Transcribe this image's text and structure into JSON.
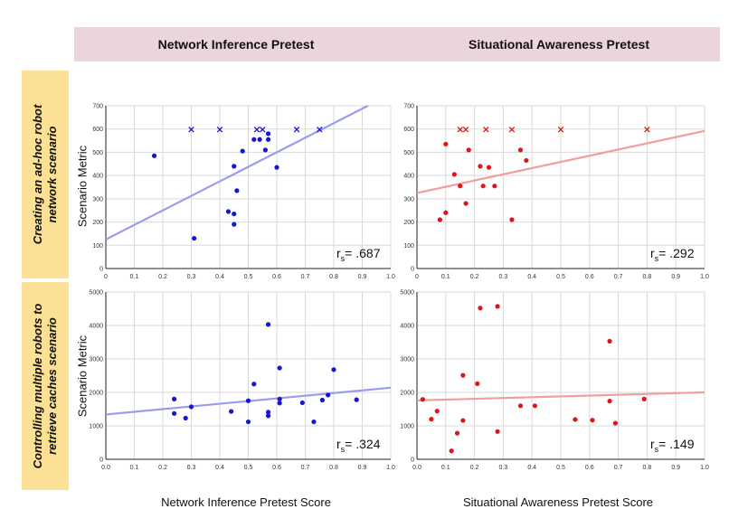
{
  "headers": {
    "col1": "Network Inference Pretest",
    "col2": "Situational Awareness Pretest",
    "row1_line1": "Creating an ad-hoc robot",
    "row1_line2": "network scenario",
    "row2_line1": "Controlling multiple robots to",
    "row2_line2": "retrieve caches scenario"
  },
  "ylabel": "Scenario Metric",
  "xlabels": {
    "col1": "Network Inference Pretest Score",
    "col2": "Situational Awareness Pretest Score"
  },
  "colors": {
    "blue": "#1515d6",
    "blue_line": "#9a9cf0",
    "red": "#e01515",
    "red_line": "#f29d9d",
    "grid": "#d9d9d9"
  },
  "chart_data": [
    {
      "type": "scatter",
      "xlim": [
        0,
        1
      ],
      "ylim": [
        0,
        700
      ],
      "xticks": [
        "0",
        "0.1",
        "0.2",
        "0.3",
        "0.4",
        "0.5",
        "0.6",
        "0.7",
        "0.8",
        "0.9",
        "1.0"
      ],
      "yticks": [
        "0",
        "100",
        "200",
        "300",
        "400",
        "500",
        "600",
        "700"
      ],
      "color": "blue",
      "points": [
        [
          0.17,
          485
        ],
        [
          0.31,
          130
        ],
        [
          0.43,
          245
        ],
        [
          0.45,
          440
        ],
        [
          0.45,
          235
        ],
        [
          0.45,
          190
        ],
        [
          0.46,
          335
        ],
        [
          0.48,
          505
        ],
        [
          0.52,
          555
        ],
        [
          0.54,
          555
        ],
        [
          0.56,
          510
        ],
        [
          0.57,
          555
        ],
        [
          0.57,
          580
        ],
        [
          0.6,
          435
        ]
      ],
      "crosses": [
        [
          0.3,
          598
        ],
        [
          0.4,
          598
        ],
        [
          0.53,
          598
        ],
        [
          0.55,
          598
        ],
        [
          0.67,
          598
        ],
        [
          0.75,
          598
        ]
      ],
      "trend": [
        [
          0,
          125
        ],
        [
          0.92,
          700
        ]
      ],
      "annotation": {
        "r": "r",
        "sub": "s",
        "value": "= .687"
      }
    },
    {
      "type": "scatter",
      "xlim": [
        0,
        1
      ],
      "ylim": [
        0,
        700
      ],
      "xticks": [
        "0",
        "0.1",
        "0.2",
        "0.3",
        "0.4",
        "0.5",
        "0.6",
        "0.7",
        "0.8",
        "0.9",
        "1.0"
      ],
      "yticks": [
        "0",
        "100",
        "200",
        "300",
        "400",
        "500",
        "600",
        "700"
      ],
      "color": "red",
      "points": [
        [
          0.08,
          210
        ],
        [
          0.1,
          535
        ],
        [
          0.1,
          240
        ],
        [
          0.13,
          405
        ],
        [
          0.15,
          355
        ],
        [
          0.17,
          280
        ],
        [
          0.18,
          510
        ],
        [
          0.22,
          440
        ],
        [
          0.23,
          355
        ],
        [
          0.25,
          435
        ],
        [
          0.27,
          355
        ],
        [
          0.33,
          210
        ],
        [
          0.36,
          510
        ],
        [
          0.38,
          465
        ]
      ],
      "crosses": [
        [
          0.15,
          598
        ],
        [
          0.17,
          598
        ],
        [
          0.24,
          598
        ],
        [
          0.33,
          598
        ],
        [
          0.5,
          598
        ],
        [
          0.8,
          598
        ]
      ],
      "trend": [
        [
          0,
          325
        ],
        [
          1,
          592
        ]
      ],
      "annotation": {
        "r": "r",
        "sub": "s",
        "value": "= .292"
      }
    },
    {
      "type": "scatter",
      "xlim": [
        0,
        1
      ],
      "ylim": [
        0,
        5000
      ],
      "xticks": [
        "0.0",
        "0.1",
        "0.2",
        "0.3",
        "0.4",
        "0.5",
        "0.6",
        "0.7",
        "0.8",
        "0.9",
        "1.0"
      ],
      "yticks": [
        "0",
        "1000",
        "2000",
        "3000",
        "4000",
        "5000"
      ],
      "color": "blue",
      "points": [
        [
          0.24,
          1800
        ],
        [
          0.24,
          1370
        ],
        [
          0.28,
          1230
        ],
        [
          0.3,
          1570
        ],
        [
          0.44,
          1430
        ],
        [
          0.5,
          1750
        ],
        [
          0.5,
          1120
        ],
        [
          0.52,
          2250
        ],
        [
          0.57,
          4030
        ],
        [
          0.57,
          1410
        ],
        [
          0.57,
          1300
        ],
        [
          0.61,
          1800
        ],
        [
          0.61,
          1680
        ],
        [
          0.61,
          2730
        ],
        [
          0.69,
          1690
        ],
        [
          0.73,
          1120
        ],
        [
          0.76,
          1770
        ],
        [
          0.78,
          1920
        ],
        [
          0.8,
          2680
        ],
        [
          0.88,
          1780
        ]
      ],
      "crosses": [],
      "trend": [
        [
          0,
          1340
        ],
        [
          1,
          2140
        ]
      ],
      "annotation": {
        "r": "r",
        "sub": "s",
        "value": "= .324"
      }
    },
    {
      "type": "scatter",
      "xlim": [
        0,
        1
      ],
      "ylim": [
        0,
        5000
      ],
      "xticks": [
        "0.0",
        "0.1",
        "0.2",
        "0.3",
        "0.4",
        "0.5",
        "0.6",
        "0.7",
        "0.8",
        "0.9",
        "1.0"
      ],
      "yticks": [
        "0",
        "1000",
        "2000",
        "3000",
        "4000",
        "5000"
      ],
      "color": "red",
      "points": [
        [
          0.02,
          1790
        ],
        [
          0.05,
          1200
        ],
        [
          0.07,
          1440
        ],
        [
          0.12,
          250
        ],
        [
          0.14,
          780
        ],
        [
          0.16,
          2510
        ],
        [
          0.16,
          1160
        ],
        [
          0.21,
          2260
        ],
        [
          0.22,
          4520
        ],
        [
          0.28,
          4570
        ],
        [
          0.28,
          830
        ],
        [
          0.36,
          1600
        ],
        [
          0.41,
          1600
        ],
        [
          0.55,
          1190
        ],
        [
          0.61,
          1170
        ],
        [
          0.67,
          3530
        ],
        [
          0.67,
          1740
        ],
        [
          0.69,
          1080
        ],
        [
          0.79,
          1800
        ]
      ],
      "crosses": [],
      "trend": [
        [
          0,
          1760
        ],
        [
          1,
          2000
        ]
      ],
      "annotation": {
        "r": "r",
        "sub": "s",
        "value": "= .149"
      }
    }
  ]
}
